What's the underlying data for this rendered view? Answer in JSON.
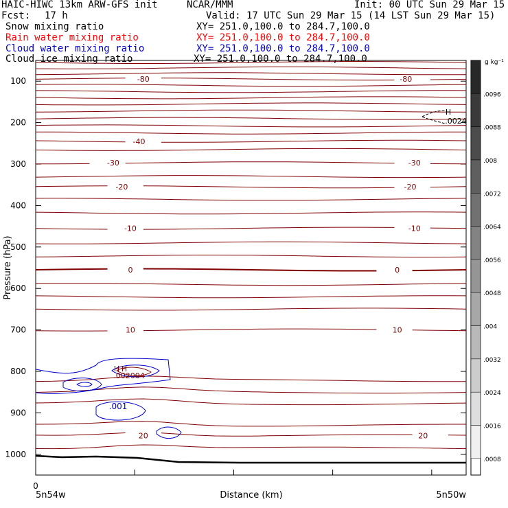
{
  "header": {
    "model_title": "HAIC-HIWC 13km ARW-GFS init",
    "org": "NCAR/MMM",
    "init": "Init: 00 UTC Sun 29 Mar 15",
    "fcst_label": "Fcst:",
    "fcst_value": "17 h",
    "valid": "Valid: 17 UTC Sun 29 Mar 15 (14 LST Sun 29 Mar 15)",
    "fields": [
      {
        "name": "Snow mixing ratio",
        "xy": "XY= 251.0,100.0 to 284.7,100.0",
        "color": "#000000"
      },
      {
        "name": "Rain water mixing ratio",
        "xy": "XY= 251.0,100.0 to 284.7,100.0",
        "color": "#ff0000"
      },
      {
        "name": "Cloud water mixing ratio",
        "xy": "XY= 251.0,100.0 to 284.7,100.0",
        "color": "#0000cc"
      },
      {
        "name": "Cloud ice mixing ratio",
        "xy": "XY= 251.0,100.0 to 284.7,100.0",
        "color": "#000000"
      }
    ]
  },
  "chart_data": {
    "type": "line",
    "chart_subtype": "vertical cross-section contour",
    "ylabel": "Pressure (hPa)",
    "xlabel": "Distance (km)",
    "x_left_label": "5n54w",
    "x_right_label": "5n50w",
    "x_zero_label": "0",
    "y_ticks": [
      100,
      200,
      300,
      400,
      500,
      600,
      700,
      800,
      900,
      1000
    ],
    "y_range": [
      50,
      1050
    ],
    "colorbar": {
      "unit": "g kg⁻¹",
      "labels": [
        ".0096",
        ".0088",
        ".008",
        ".0072",
        ".0064",
        ".0056",
        ".0048",
        ".004",
        ".0032",
        ".0024",
        ".0016",
        ".0008"
      ]
    },
    "temperature_contours": {
      "color": "#800000",
      "levels": [
        {
          "p": 55,
          "label": null,
          "x": null
        },
        {
          "p": 68,
          "label": null,
          "x": null
        },
        {
          "p": 82,
          "label": null,
          "x": null
        },
        {
          "p": 95,
          "label": "-80",
          "x": [
            0.25,
            0.86
          ]
        },
        {
          "p": 110,
          "label": null,
          "x": null
        },
        {
          "p": 125,
          "label": null,
          "x": null
        },
        {
          "p": 140,
          "label": null,
          "x": null
        },
        {
          "p": 155,
          "label": null,
          "x": null
        },
        {
          "p": 172,
          "label": null,
          "x": null
        },
        {
          "p": 190,
          "label": null,
          "x": null
        },
        {
          "p": 208,
          "label": null,
          "x": null
        },
        {
          "p": 225,
          "label": null,
          "x": null
        },
        {
          "p": 245,
          "label": "-40",
          "x": [
            0.24
          ]
        },
        {
          "p": 265,
          "label": null,
          "x": null
        },
        {
          "p": 297,
          "label": "-30",
          "x": [
            0.18,
            0.88
          ]
        },
        {
          "p": 330,
          "label": null,
          "x": null
        },
        {
          "p": 355,
          "label": "-20",
          "x": [
            0.2,
            0.87
          ]
        },
        {
          "p": 385,
          "label": null,
          "x": null
        },
        {
          "p": 418,
          "label": null,
          "x": null
        },
        {
          "p": 455,
          "label": "-10",
          "x": [
            0.22,
            0.88
          ]
        },
        {
          "p": 490,
          "label": null,
          "x": null
        },
        {
          "p": 522,
          "label": null,
          "x": null
        },
        {
          "p": 555,
          "label": "0",
          "x": [
            0.22,
            0.84
          ],
          "bold": true
        },
        {
          "p": 590,
          "label": null,
          "x": null
        },
        {
          "p": 620,
          "label": null,
          "x": null
        },
        {
          "p": 650,
          "label": null,
          "x": null
        },
        {
          "p": 700,
          "label": "10",
          "x": [
            0.22,
            0.84
          ]
        },
        {
          "p": 822,
          "label": null,
          "x": null
        },
        {
          "p": 850,
          "label": null,
          "x": null
        },
        {
          "p": 878,
          "label": null,
          "x": null
        },
        {
          "p": 930,
          "label": null,
          "x": null
        },
        {
          "p": 955,
          "label": "20",
          "x": [
            0.25,
            0.9
          ]
        },
        {
          "p": 985,
          "label": null,
          "x": null
        }
      ]
    },
    "cloud_water_contours": {
      "color": "#0000cc",
      "label": ".001",
      "high_labels": [
        "H",
        "H"
      ],
      "high_values": ".002004"
    },
    "cloud_ice_marker": {
      "label": "H",
      "value": ".0024"
    }
  }
}
